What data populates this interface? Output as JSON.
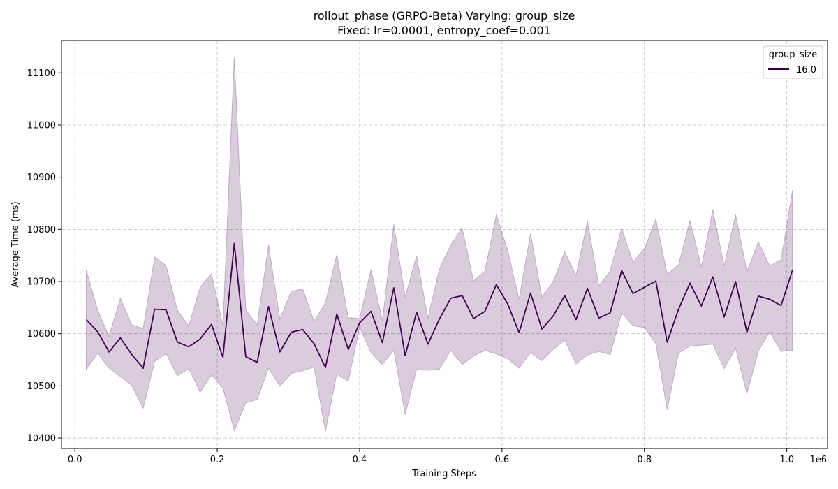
{
  "chart_data": {
    "type": "line",
    "title": "rollout_phase (GRPO-Beta) Varying: group_size",
    "subtitle": "Fixed: lr=0.0001, entropy_coef=0.001",
    "xlabel": "Training Steps",
    "ylabel": "Average Time (ms)",
    "x_offset_label": "1e6",
    "xlim": [
      -0.0188,
      1.0572
    ],
    "ylim": [
      10380,
      11162
    ],
    "x_ticks": [
      0.0,
      0.2,
      0.4,
      0.6,
      0.8,
      1.0
    ],
    "x_tick_labels": [
      "0.0",
      "0.2",
      "0.4",
      "0.6",
      "0.8",
      "1.0"
    ],
    "y_ticks": [
      10400,
      10500,
      10600,
      10700,
      10800,
      10900,
      11000,
      11100
    ],
    "y_tick_labels": [
      "10400",
      "10500",
      "10600",
      "10700",
      "10800",
      "10900",
      "11000",
      "11100"
    ],
    "grid": true,
    "legend": {
      "title": "group_size",
      "position": "top-right"
    },
    "colors": {
      "line": "#440154",
      "band": "#440154",
      "grid": "#b0b0b0"
    },
    "series": [
      {
        "name": "16.0",
        "x": [
          0.016,
          0.032,
          0.048,
          0.064,
          0.08,
          0.096,
          0.112,
          0.128,
          0.144,
          0.16,
          0.176,
          0.192,
          0.208,
          0.224,
          0.24,
          0.256,
          0.272,
          0.288,
          0.304,
          0.32,
          0.336,
          0.352,
          0.368,
          0.384,
          0.4,
          0.416,
          0.432,
          0.448,
          0.464,
          0.48,
          0.496,
          0.512,
          0.528,
          0.544,
          0.56,
          0.576,
          0.592,
          0.608,
          0.624,
          0.64,
          0.656,
          0.672,
          0.688,
          0.704,
          0.72,
          0.736,
          0.752,
          0.768,
          0.784,
          0.8,
          0.816,
          0.832,
          0.848,
          0.864,
          0.88,
          0.896,
          0.912,
          0.928,
          0.944,
          0.96,
          0.976,
          0.992,
          1.008
        ],
        "values": [
          10627,
          10604,
          10565,
          10592,
          10560,
          10534,
          10647,
          10646,
          10584,
          10575,
          10590,
          10618,
          10555,
          10773,
          10556,
          10545,
          10652,
          10565,
          10603,
          10608,
          10581,
          10535,
          10638,
          10570,
          10621,
          10643,
          10583,
          10688,
          10558,
          10641,
          10580,
          10628,
          10668,
          10673,
          10629,
          10643,
          10694,
          10657,
          10602,
          10678,
          10609,
          10634,
          10673,
          10627,
          10687,
          10630,
          10640,
          10721,
          10677,
          10689,
          10701,
          10584,
          10647,
          10697,
          10653,
          10709,
          10632,
          10700,
          10603,
          10672,
          10666,
          10654,
          10722
        ],
        "upper": [
          10722,
          10645,
          10595,
          10668,
          10617,
          10610,
          10747,
          10731,
          10645,
          10615,
          10689,
          10715,
          10615,
          11131,
          10646,
          10617,
          10770,
          10628,
          10681,
          10686,
          10624,
          10659,
          10752,
          10631,
          10629,
          10723,
          10625,
          10810,
          10670,
          10749,
          10630,
          10724,
          10770,
          10803,
          10701,
          10720,
          10828,
          10760,
          10666,
          10792,
          10670,
          10700,
          10757,
          10712,
          10816,
          10692,
          10720,
          10802,
          10737,
          10763,
          10820,
          10714,
          10732,
          10817,
          10728,
          10838,
          10730,
          10828,
          10719,
          10776,
          10730,
          10742,
          10875
        ],
        "lower": [
          10531,
          10563,
          10534,
          10518,
          10501,
          10457,
          10547,
          10562,
          10519,
          10533,
          10488,
          10521,
          10496,
          10414,
          10467,
          10474,
          10534,
          10500,
          10524,
          10529,
          10536,
          10413,
          10523,
          10509,
          10612,
          10564,
          10541,
          10568,
          10445,
          10531,
          10530,
          10532,
          10568,
          10541,
          10557,
          10568,
          10561,
          10552,
          10534,
          10564,
          10548,
          10570,
          10588,
          10542,
          10559,
          10566,
          10560,
          10640,
          10615,
          10612,
          10581,
          10454,
          10563,
          10576,
          10578,
          10580,
          10533,
          10572,
          10485,
          10567,
          10603,
          10566,
          10568
        ]
      }
    ]
  }
}
